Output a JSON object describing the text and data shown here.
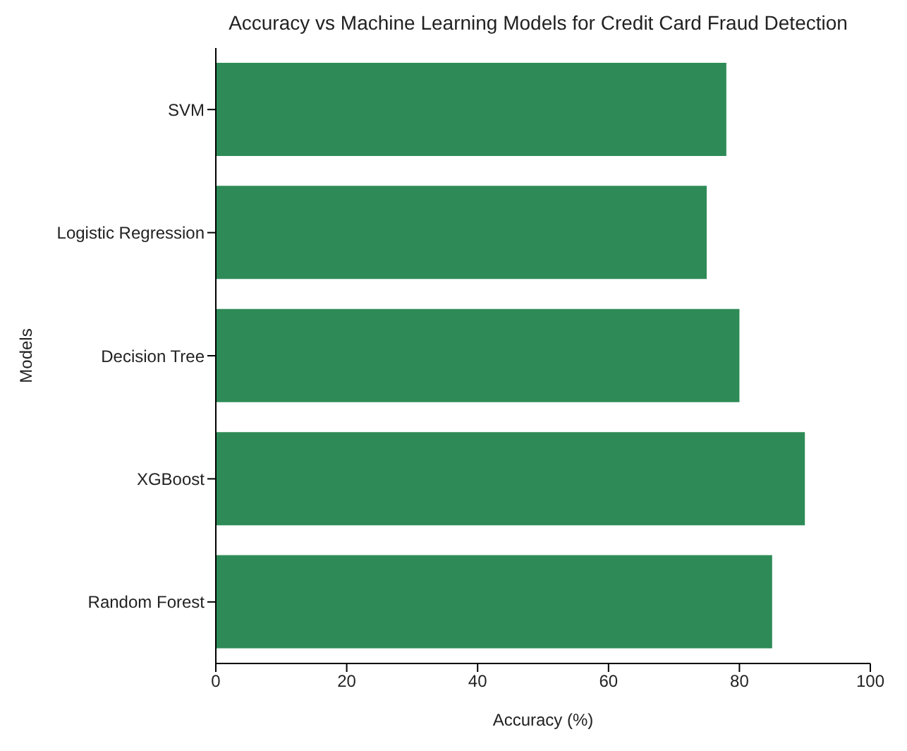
{
  "chart_data": {
    "type": "bar",
    "orientation": "horizontal",
    "title": "Accuracy vs Machine Learning Models for Credit Card Fraud Detection",
    "xlabel": "Accuracy (%)",
    "ylabel": "Models",
    "categories": [
      "SVM",
      "Logistic Regression",
      "Decision Tree",
      "XGBoost",
      "Random Forest"
    ],
    "values": [
      78,
      75,
      80,
      90,
      85
    ],
    "color": "#2e8b57",
    "xlim": [
      0,
      100
    ],
    "xticks": [
      0,
      20,
      40,
      60,
      80,
      100
    ],
    "grid": false
  }
}
